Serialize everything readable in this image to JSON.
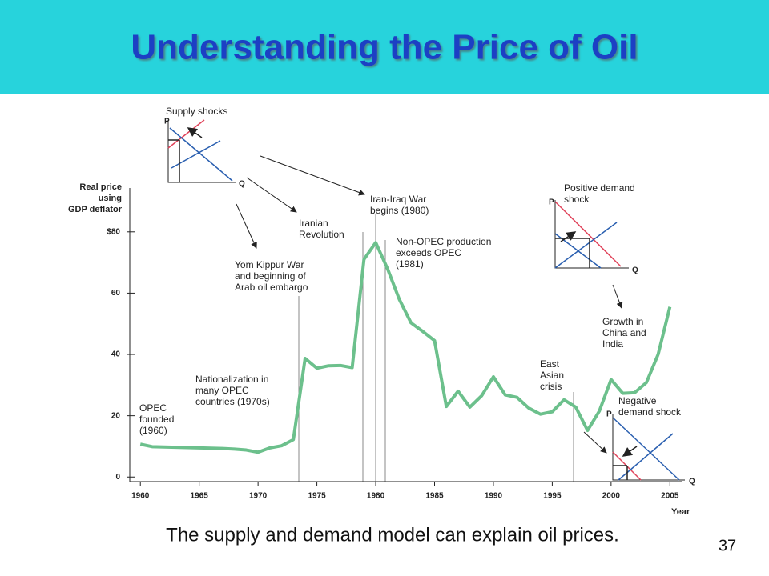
{
  "chart_data": {
    "type": "line",
    "title": "Understanding the Price of Oil",
    "y_label": [
      "Real price",
      "using",
      "GDP deflator"
    ],
    "x_label": "Year",
    "x": [
      1960,
      1961,
      1962,
      1963,
      1964,
      1965,
      1966,
      1967,
      1968,
      1969,
      1970,
      1971,
      1972,
      1973,
      1974,
      1975,
      1976,
      1977,
      1978,
      1979,
      1980,
      1981,
      1982,
      1983,
      1984,
      1985,
      1986,
      1987,
      1988,
      1989,
      1990,
      1991,
      1992,
      1993,
      1994,
      1995,
      1996,
      1997,
      1998,
      1999,
      2000,
      2001,
      2002,
      2003,
      2004,
      2005
    ],
    "values": [
      10.7,
      9.9,
      9.8,
      9.7,
      9.6,
      9.5,
      9.4,
      9.3,
      9.1,
      8.8,
      8.1,
      9.5,
      10.2,
      12.2,
      38.7,
      35.5,
      36.3,
      36.4,
      35.7,
      71,
      76.5,
      68,
      58,
      50.3,
      47.5,
      44.5,
      23,
      28,
      22.8,
      26.5,
      32.7,
      26.8,
      26,
      22.5,
      20.5,
      21.3,
      25.2,
      22.8,
      15.2,
      21.5,
      31.8,
      27.3,
      27.5,
      30.8,
      40,
      55.5
    ],
    "color": "#6cc08c",
    "xlim": [
      1959.1,
      2006
    ],
    "xticks": [
      1960,
      1965,
      1970,
      1975,
      1980,
      1985,
      1990,
      1995,
      2000,
      2005
    ],
    "ylim": [
      -1.5,
      93
    ],
    "yticks": [
      0,
      20,
      40,
      60,
      {
        "value": 80,
        "label": "$80"
      }
    ],
    "annotations": [
      {
        "lines": [
          "Supply shocks"
        ]
      },
      {
        "lines": [
          "Iran-Iraq War",
          "begins (1980)"
        ]
      },
      {
        "lines": [
          "Iranian",
          "Revolution"
        ]
      },
      {
        "lines": [
          "Non-OPEC production",
          "exceeds OPEC",
          "(1981)"
        ]
      },
      {
        "lines": [
          "Yom Kippur War",
          "and beginning of",
          "Arab oil embargo"
        ]
      },
      {
        "lines": [
          "Positive demand",
          "shock"
        ]
      },
      {
        "lines": [
          "Growth in",
          "China and",
          "India"
        ]
      },
      {
        "lines": [
          "East",
          "Asian",
          "crisis"
        ]
      },
      {
        "lines": [
          "Nationalization in",
          "many OPEC",
          "countries (1970s)"
        ]
      },
      {
        "lines": [
          "OPEC",
          "founded",
          "(1960)"
        ]
      },
      {
        "lines": [
          "Negative",
          "demand shock"
        ]
      }
    ],
    "inset_axis_labels": [
      "P",
      "Q"
    ]
  },
  "slide": {
    "caption": "The supply and demand model can explain oil prices.",
    "page_number": "37"
  }
}
